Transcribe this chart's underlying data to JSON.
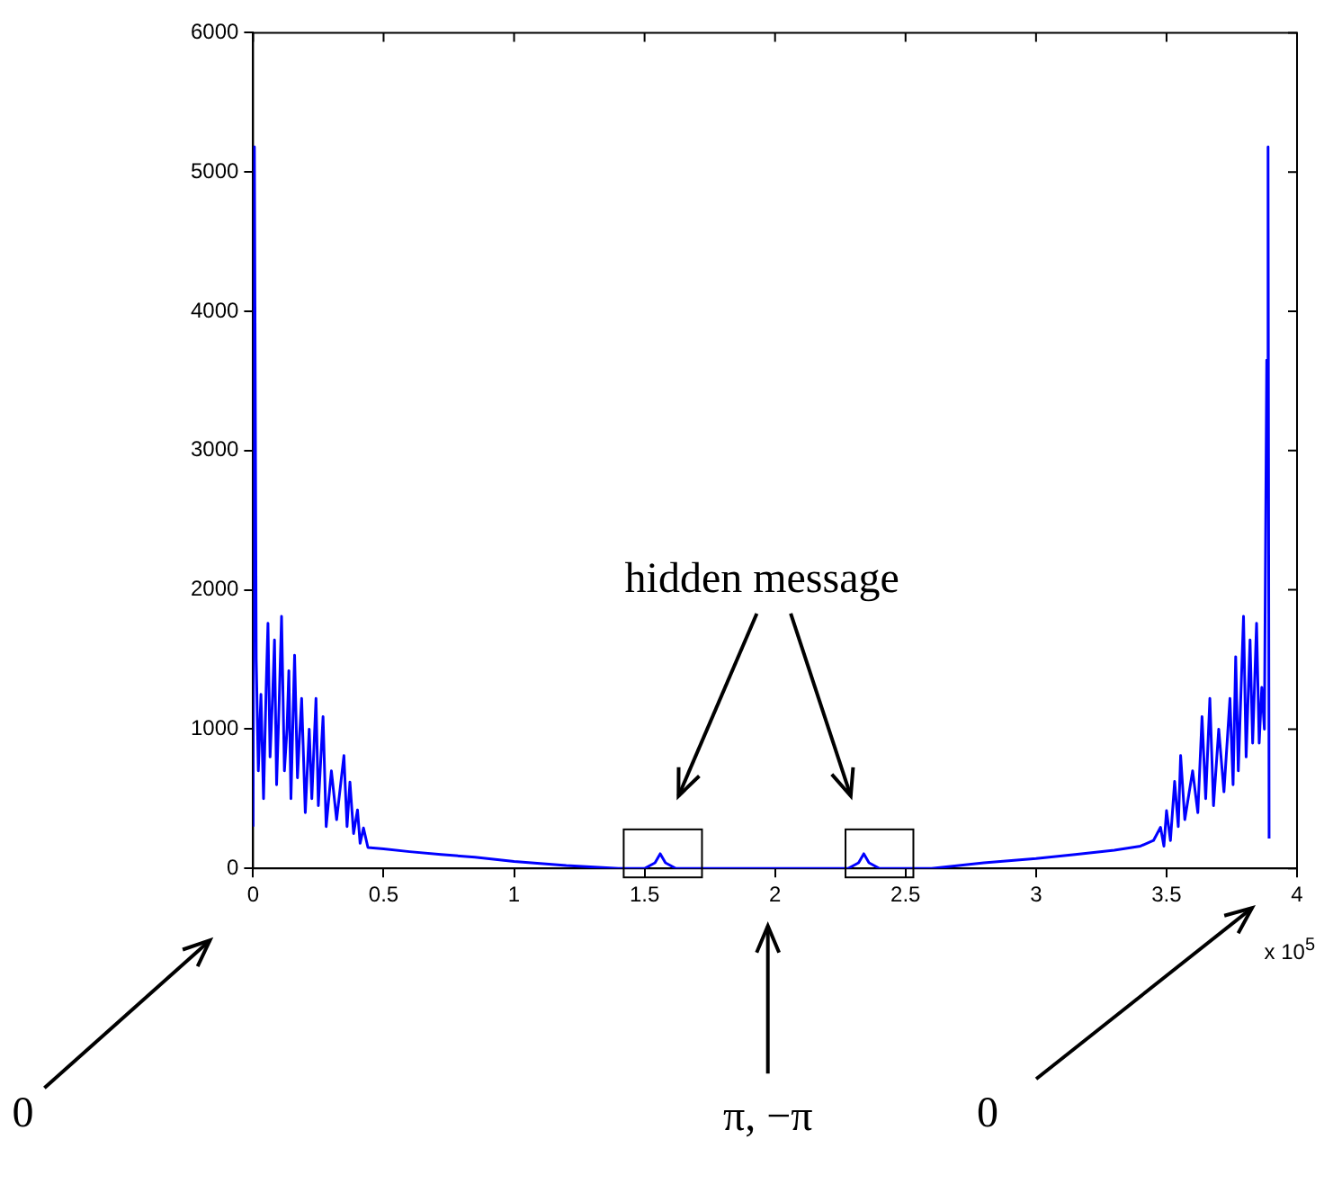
{
  "chart_data": {
    "type": "line",
    "x": [
      0,
      0.005,
      0.012,
      0.02,
      0.03,
      0.04,
      0.05,
      0.057,
      0.065,
      0.075,
      0.082,
      0.09,
      0.1,
      0.109,
      0.12,
      0.13,
      0.137,
      0.145,
      0.159,
      0.17,
      0.178,
      0.186,
      0.2,
      0.215,
      0.225,
      0.241,
      0.25,
      0.268,
      0.28,
      0.3,
      0.32,
      0.348,
      0.36,
      0.371,
      0.385,
      0.4,
      0.41,
      0.423,
      0.44,
      0.5,
      0.6,
      0.72,
      0.85,
      1.0,
      1.2,
      1.4,
      1.5,
      1.54,
      1.56,
      1.58,
      1.62,
      1.8,
      2.0,
      2.2,
      2.28,
      2.32,
      2.34,
      2.36,
      2.4,
      2.6,
      2.8,
      3.0,
      3.15,
      3.3,
      3.4,
      3.45,
      3.477,
      3.49,
      3.5,
      3.515,
      3.531,
      3.545,
      3.554,
      3.57,
      3.6,
      3.62,
      3.636,
      3.65,
      3.666,
      3.68,
      3.7,
      3.72,
      3.743,
      3.755,
      3.765,
      3.775,
      3.795,
      3.805,
      3.82,
      3.83,
      3.845,
      3.855,
      3.865,
      3.875,
      3.884,
      3.889,
      3.893
    ],
    "series": [
      {
        "color": "#0000ff",
        "values": [
          300,
          5180,
          1500,
          700,
          1250,
          500,
          1300,
          1760,
          800,
          1250,
          1640,
          600,
          1200,
          1810,
          700,
          1000,
          1420,
          500,
          1530,
          650,
          950,
          1220,
          400,
          1000,
          500,
          1220,
          450,
          1090,
          300,
          700,
          350,
          810,
          300,
          620,
          250,
          420,
          180,
          290,
          150,
          140,
          120,
          100,
          80,
          50,
          20,
          0,
          0,
          40,
          105,
          40,
          0,
          0,
          0,
          0,
          0,
          40,
          105,
          40,
          0,
          0,
          40,
          70,
          100,
          130,
          160,
          200,
          295,
          160,
          414,
          200,
          624,
          300,
          810,
          350,
          700,
          400,
          1090,
          500,
          1220,
          450,
          1000,
          550,
          1220,
          600,
          1520,
          700,
          1810,
          800,
          1640,
          900,
          1760,
          900,
          1300,
          1000,
          3650,
          5180,
          215
        ]
      }
    ],
    "xlim": [
      0,
      4
    ],
    "xticks": [
      0,
      0.5,
      1,
      1.5,
      2,
      2.5,
      3,
      3.5,
      4
    ],
    "ylim": [
      0,
      6000
    ],
    "yticks": [
      0,
      1000,
      2000,
      3000,
      4000,
      5000,
      6000
    ],
    "grid": false,
    "legend": false,
    "marker": "none",
    "line_style": "solid",
    "annotations": [
      "hidden message",
      "0",
      "π, −π",
      "0",
      "x 10$^{5}$"
    ]
  }
}
